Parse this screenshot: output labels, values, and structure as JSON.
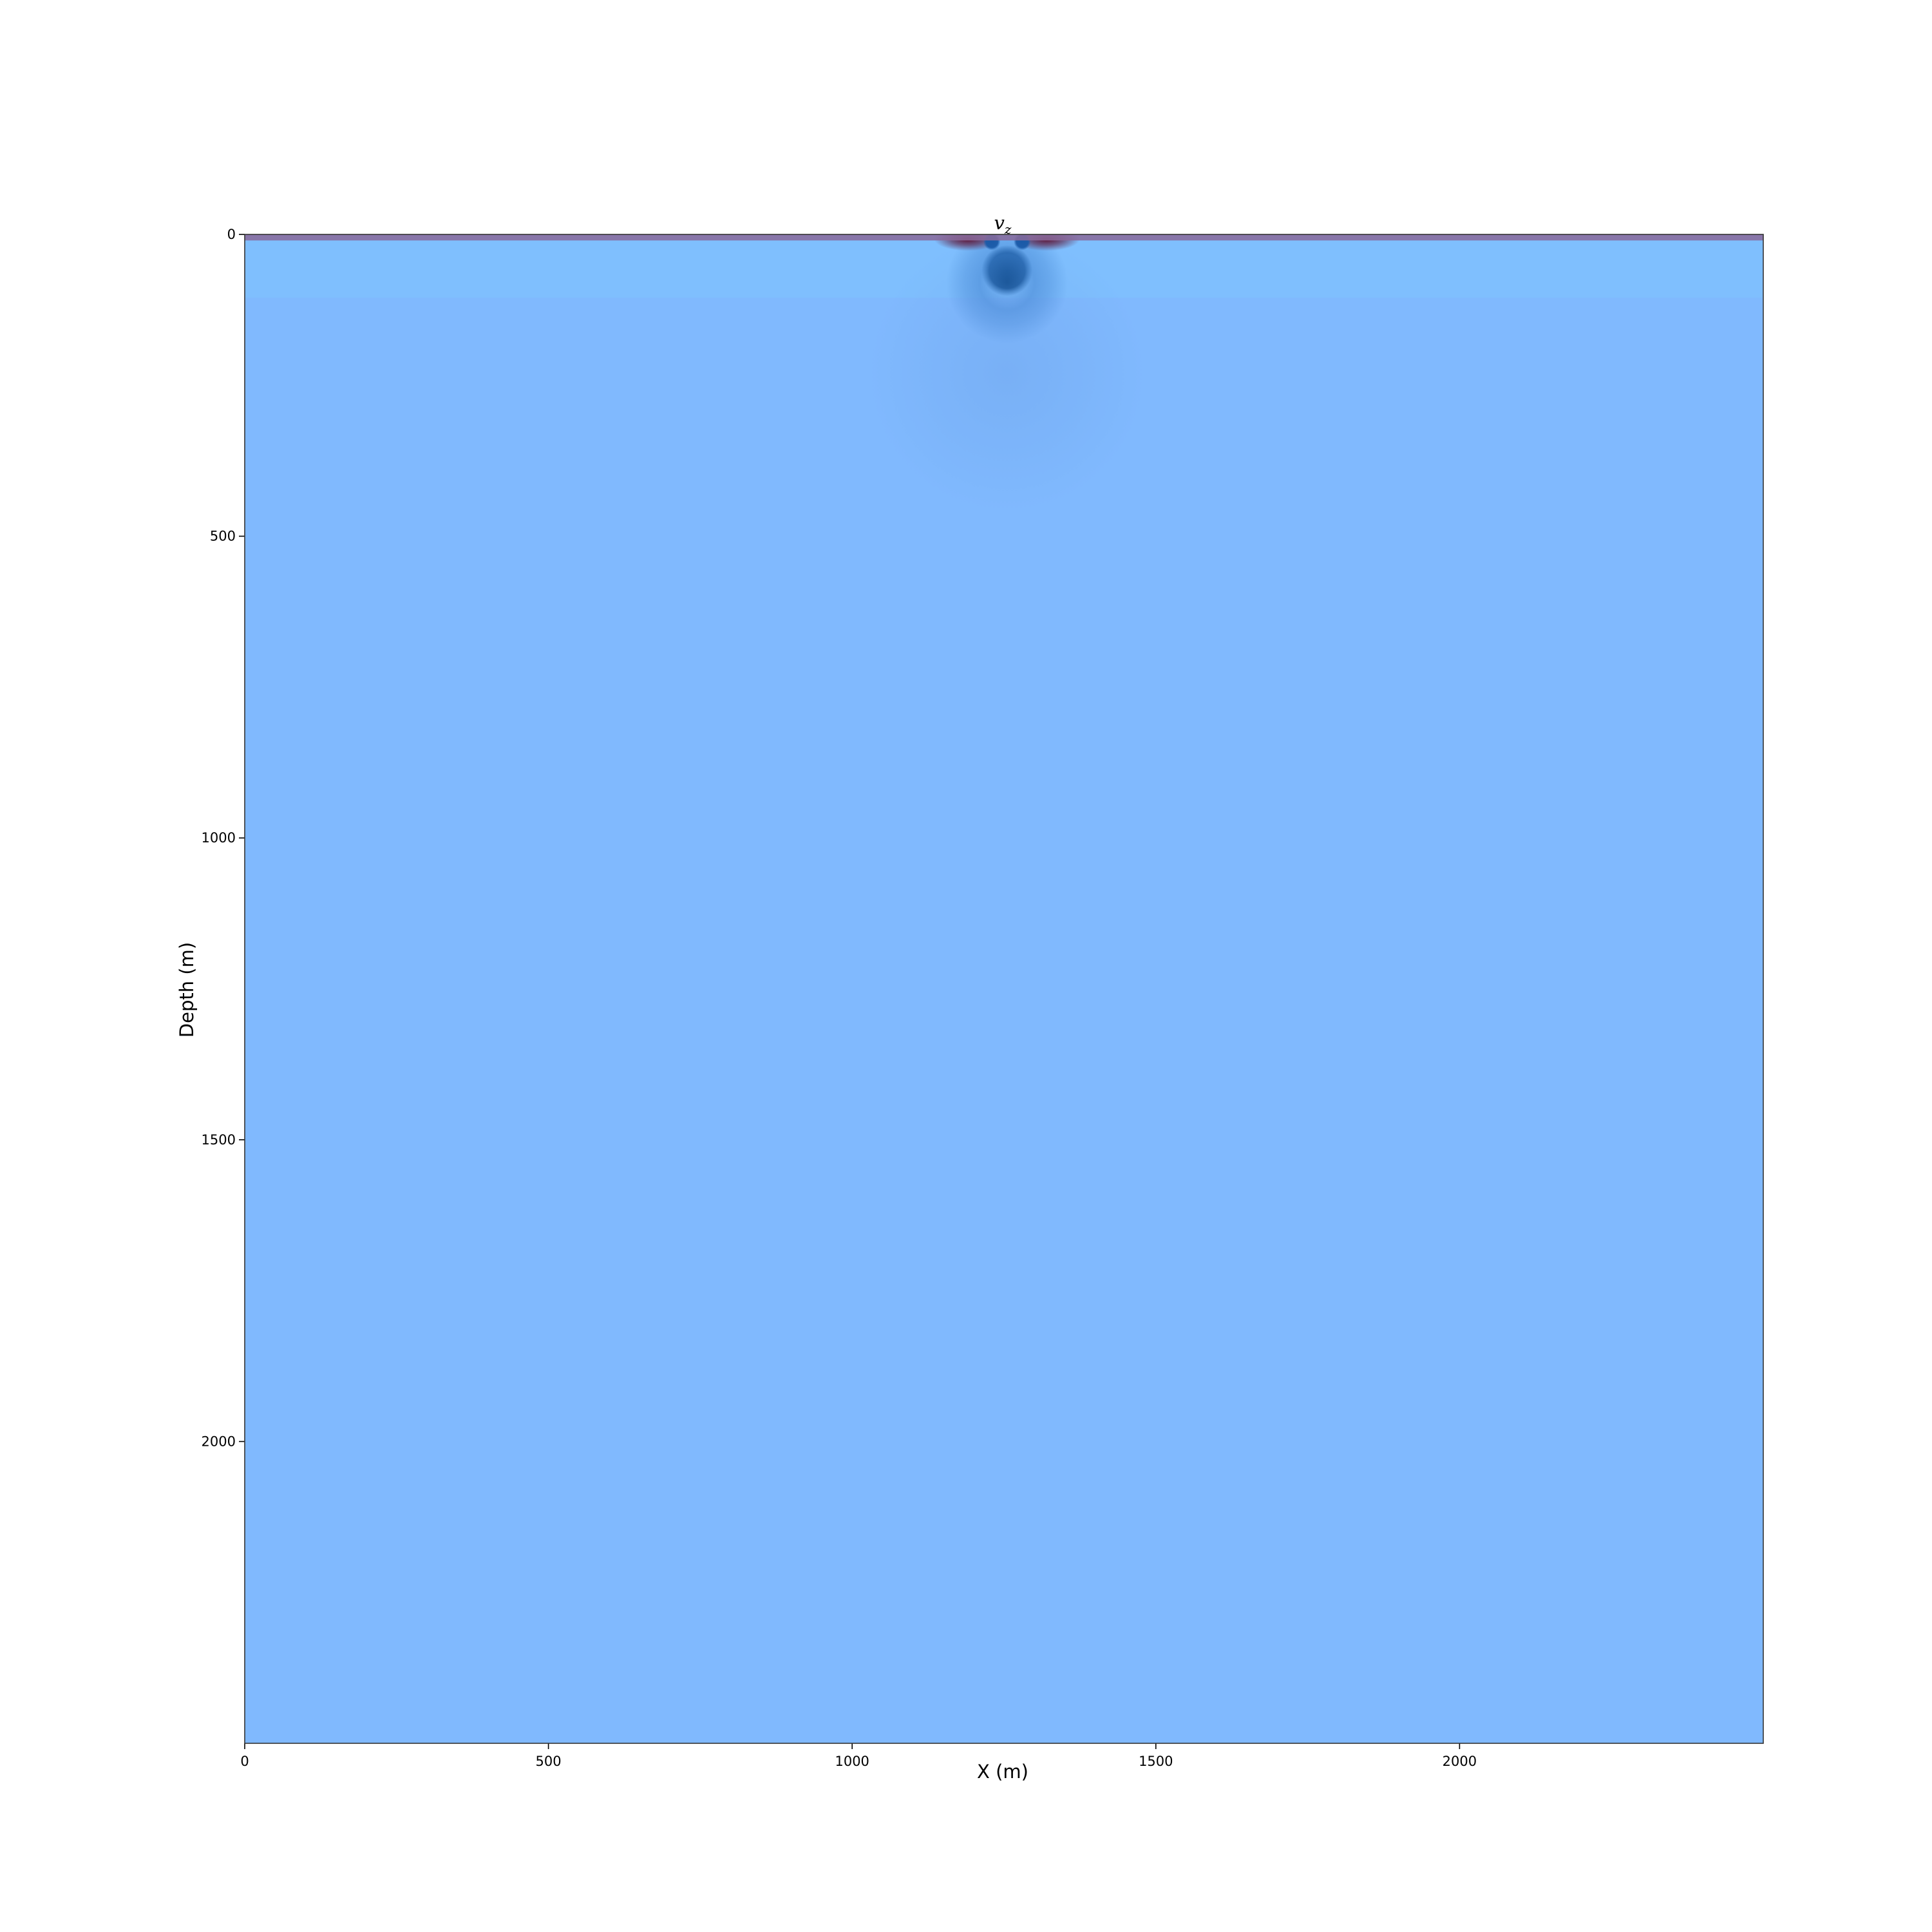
{
  "chart_data": {
    "type": "heatmap",
    "title": "v",
    "title_subscript": "z",
    "xlabel": "X (m)",
    "ylabel": "Depth (m)",
    "xlim": [
      0,
      2500
    ],
    "ylim": [
      2500,
      0
    ],
    "y_axis_inverted": true,
    "x_ticks": [
      0,
      500,
      1000,
      1500,
      2000
    ],
    "y_ticks": [
      0,
      500,
      1000,
      1500,
      2000
    ],
    "grid": false,
    "colormap": "seismic",
    "background_value_color": "#80b9fe",
    "layer_color": "#7fbffe",
    "layers": [
      {
        "depth_top": 10,
        "depth_bottom": 105
      }
    ],
    "surface_band": {
      "depth_top": 0,
      "depth_bottom": 10,
      "color": "#8a6a9a"
    },
    "source": {
      "x": 1255,
      "depth": 60
    },
    "features": [
      {
        "kind": "negative-blob",
        "x": 1255,
        "depth": 60,
        "radius": 42,
        "color": "#0d4a8c"
      },
      {
        "kind": "negative-ring",
        "x": 1255,
        "depth": 80,
        "radius": 100,
        "color": "#3f82cf"
      },
      {
        "kind": "negative-halo",
        "x": 1255,
        "depth": 230,
        "radius": 230,
        "color": "#6a9fe6"
      },
      {
        "kind": "positive-lobe",
        "x": 1190,
        "depth": 8,
        "radius": 55,
        "color": "#5a0a2a"
      },
      {
        "kind": "positive-lobe",
        "x": 1320,
        "depth": 8,
        "radius": 55,
        "color": "#5a0a2a"
      },
      {
        "kind": "negative-spot",
        "x": 1230,
        "depth": 12,
        "radius": 14,
        "color": "#1a5aa8"
      },
      {
        "kind": "negative-spot",
        "x": 1280,
        "depth": 12,
        "radius": 14,
        "color": "#1a5aa8"
      }
    ]
  }
}
